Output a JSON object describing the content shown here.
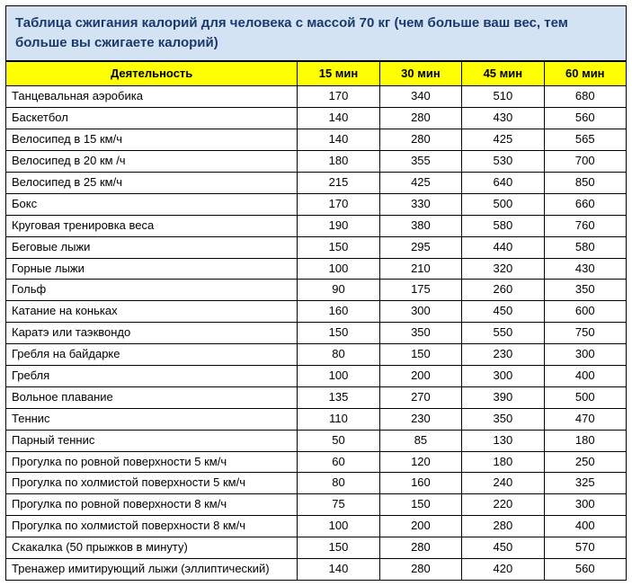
{
  "title": "Таблица сжигания калорий для человека с массой 70 кг (чем больше ваш вес, тем больше вы сжигаете калорий)",
  "colors": {
    "title_bg": "#d4e3f4",
    "title_text": "#1a3a6e",
    "header_bg": "#ffff00",
    "header_text": "#000000",
    "border": "#000000",
    "cell_bg": "#ffffff",
    "cell_text": "#000000"
  },
  "table": {
    "type": "table",
    "columns": [
      "Деятельность",
      "15 мин",
      "30 мин",
      "45 мин",
      "60 мин"
    ],
    "column_widths_pct": [
      47,
      13.25,
      13.25,
      13.25,
      13.25
    ],
    "font_size_pt": 10,
    "header_font_weight": "bold",
    "rows": [
      [
        "Танцевальная аэробика",
        170,
        340,
        510,
        680
      ],
      [
        "Баскетбол",
        140,
        280,
        430,
        560
      ],
      [
        "Велосипед в 15 км/ч",
        140,
        280,
        425,
        565
      ],
      [
        "Велосипед в 20 км /ч",
        180,
        355,
        530,
        700
      ],
      [
        "Велосипед в 25 км/ч",
        215,
        425,
        640,
        850
      ],
      [
        "Бокс",
        170,
        330,
        500,
        660
      ],
      [
        "Круговая тренировка веса",
        190,
        380,
        580,
        760
      ],
      [
        "Беговые лыжи",
        150,
        295,
        440,
        580
      ],
      [
        "Горные лыжи",
        100,
        210,
        320,
        430
      ],
      [
        "Гольф",
        90,
        175,
        260,
        350
      ],
      [
        "Катание на коньках",
        160,
        300,
        450,
        600
      ],
      [
        "Каратэ или таэквондо",
        150,
        350,
        550,
        750
      ],
      [
        "Гребля на байдарке",
        80,
        150,
        230,
        300
      ],
      [
        "Гребля",
        100,
        200,
        300,
        400
      ],
      [
        "Вольное плавание",
        135,
        270,
        390,
        500
      ],
      [
        "Теннис",
        110,
        230,
        350,
        470
      ],
      [
        "Парный теннис",
        50,
        85,
        130,
        180
      ],
      [
        "Прогулка по ровной поверхности 5 км/ч",
        60,
        120,
        180,
        250
      ],
      [
        "Прогулка по холмистой поверхности 5 км/ч",
        80,
        160,
        240,
        325
      ],
      [
        "Прогулка по ровной поверхности 8 км/ч",
        75,
        150,
        220,
        300
      ],
      [
        "Прогулка по холмистой поверхности 8 км/ч",
        100,
        200,
        280,
        400
      ],
      [
        "Скакалка (50 прыжков в минуту)",
        150,
        280,
        450,
        570
      ],
      [
        "Тренажер имитирующий лыжи (эллиптический)",
        140,
        280,
        420,
        560
      ]
    ]
  }
}
